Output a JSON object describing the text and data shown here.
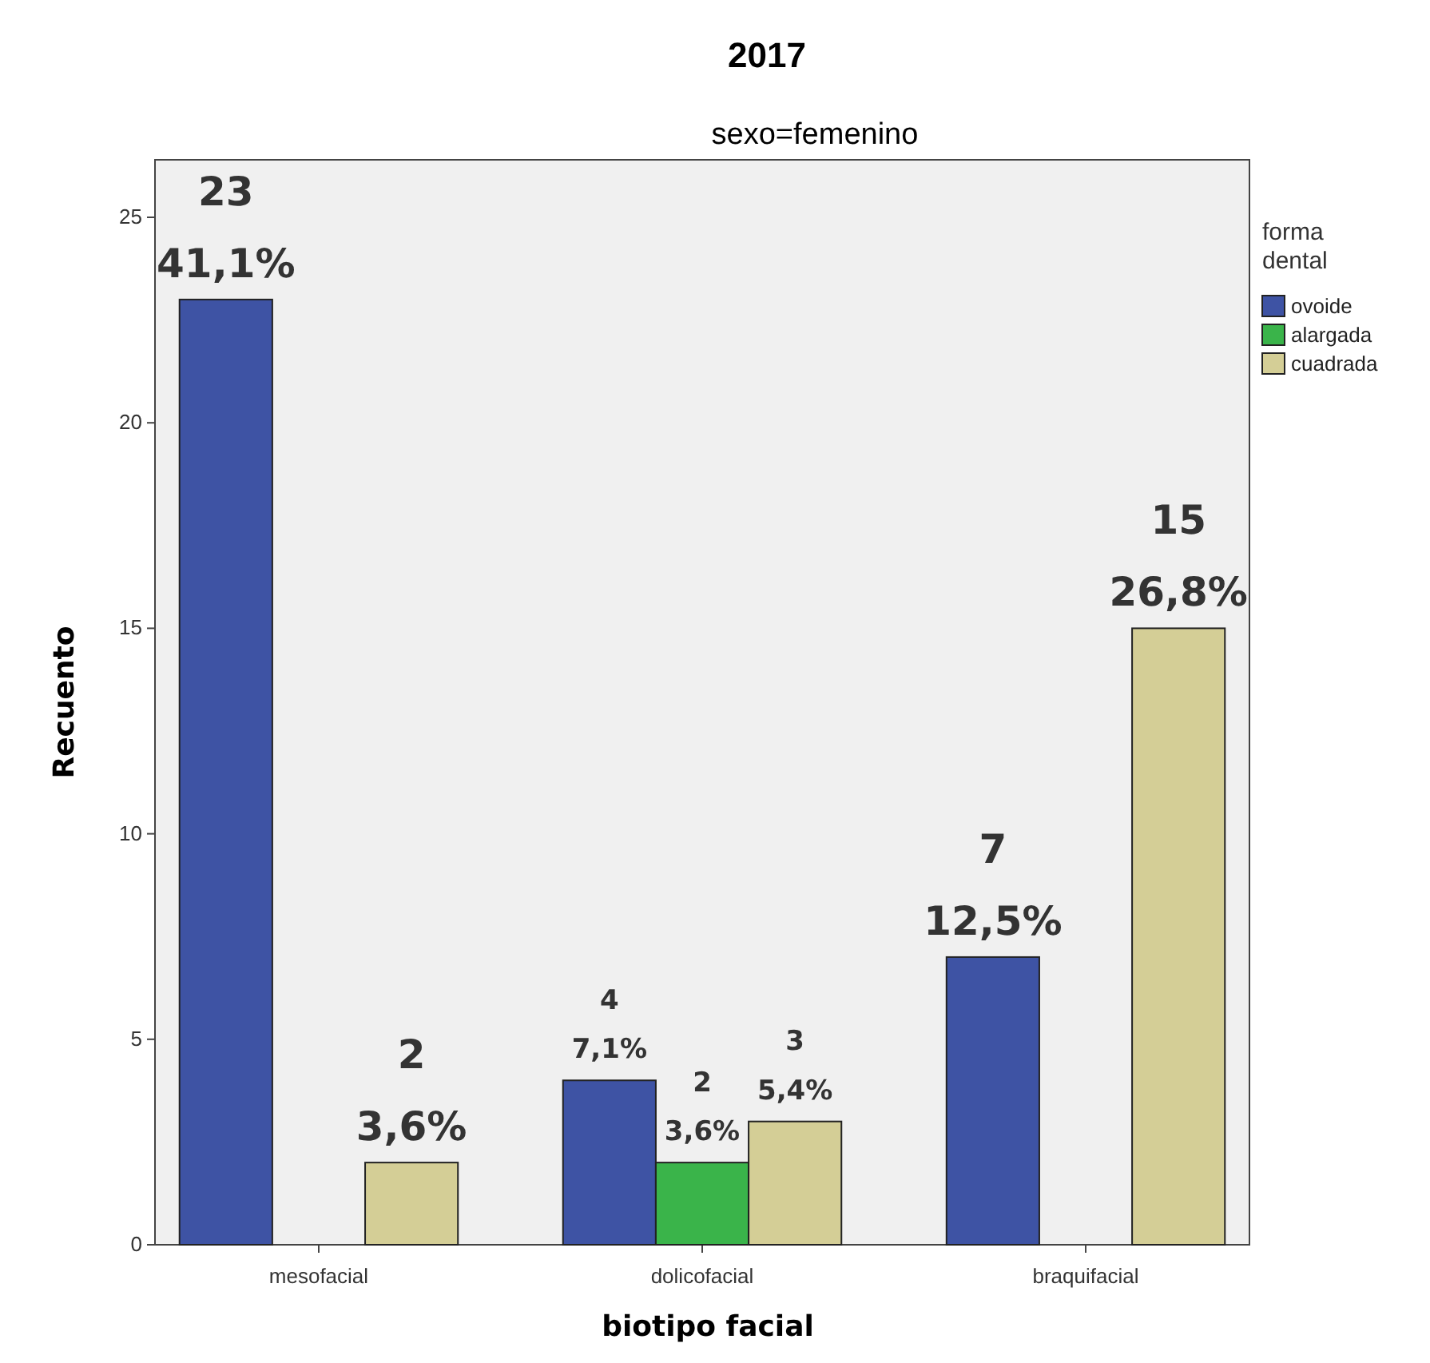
{
  "chart_data": {
    "type": "bar",
    "title": "2017",
    "subtitle": "sexo=femenino",
    "xlabel": "biotipo facial",
    "ylabel": "Recuento",
    "legend_title": "forma dental",
    "categories": [
      "mesofacial",
      "dolicofacial",
      "braquifacial"
    ],
    "series": [
      {
        "name": "ovoide",
        "color": "#3e53a4",
        "values": [
          23,
          4,
          7
        ],
        "value_labels": [
          "23\n41,1%",
          "4\n7,1%",
          "7\n12,5%"
        ]
      },
      {
        "name": "alargada",
        "color": "#3ab44a",
        "values": [
          null,
          2,
          null
        ],
        "value_labels": [
          null,
          "2\n3,6%",
          null
        ]
      },
      {
        "name": "cuadrada",
        "color": "#d4ce96",
        "values": [
          2,
          3,
          15
        ],
        "value_labels": [
          "2\n3,6%",
          "3\n5,4%",
          "15\n26,8%"
        ]
      }
    ],
    "ylim": [
      0,
      26.4
    ],
    "yticks": [
      0,
      5,
      10,
      15,
      20,
      25
    ],
    "grid": false,
    "legend": "top right"
  }
}
